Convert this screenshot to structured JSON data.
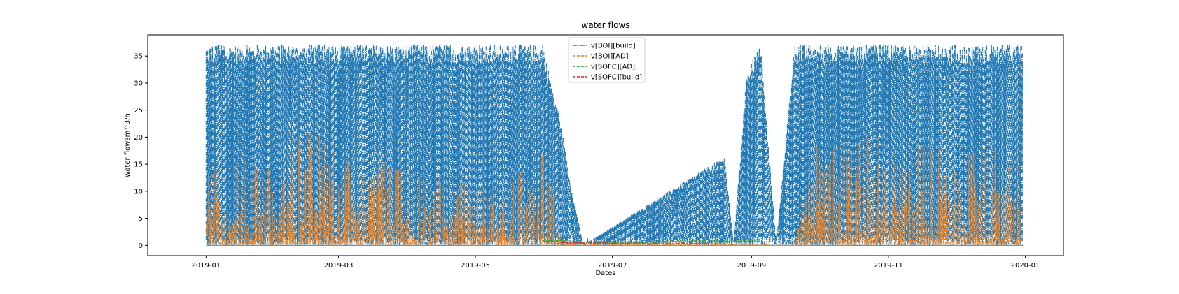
{
  "chart_data": {
    "type": "line",
    "title": "water flows",
    "xlabel": "Dates",
    "ylabel": "water flowsm^3/h",
    "x_range": [
      "2018-12-06",
      "2020-01-18"
    ],
    "ylim": [
      -1.9,
      38.9
    ],
    "x_ticks": [
      "2019-01",
      "2019-03",
      "2019-05",
      "2019-07",
      "2019-09",
      "2019-11",
      "2020-01"
    ],
    "y_ticks": [
      0,
      5,
      10,
      15,
      20,
      25,
      30,
      35
    ],
    "grid": false,
    "legend_position": "top-center",
    "series": [
      {
        "name": "v[BOI][build]",
        "color": "#1f77b4",
        "dash": "dashdot",
        "cap": 37.1,
        "x": [
          "2019-01-01",
          "2019-01-15",
          "2019-02-01",
          "2019-02-15",
          "2019-03-01",
          "2019-03-15",
          "2019-04-01",
          "2019-04-15",
          "2019-05-01",
          "2019-05-15",
          "2019-05-31",
          "2019-06-08",
          "2019-06-12",
          "2019-06-18",
          "2019-08-20",
          "2019-08-24",
          "2019-08-30",
          "2019-09-05",
          "2019-09-12",
          "2019-09-20",
          "2019-10-01",
          "2019-10-15",
          "2019-11-01",
          "2019-11-15",
          "2019-12-01",
          "2019-12-15",
          "2019-12-31"
        ],
        "values": [
          37.1,
          37.1,
          37.1,
          37.1,
          37.1,
          37.1,
          37.1,
          37.1,
          37.1,
          37.1,
          37.1,
          23.0,
          12.0,
          0,
          16.5,
          0,
          33.0,
          37.1,
          0,
          37.1,
          37.1,
          37.1,
          37.1,
          37.1,
          37.1,
          37.1,
          37.1
        ]
      },
      {
        "name": "v[BOI][AD]",
        "color": "#ff7f0e",
        "dash": "dashed",
        "x": [
          "2019-01-01",
          "2019-01-15",
          "2019-02-01",
          "2019-02-15",
          "2019-03-01",
          "2019-03-15",
          "2019-04-01",
          "2019-04-15",
          "2019-05-01",
          "2019-05-15",
          "2019-05-31",
          "2019-06-10",
          "2019-09-20",
          "2019-10-01",
          "2019-10-15",
          "2019-11-01",
          "2019-11-15",
          "2019-12-01",
          "2019-12-15",
          "2019-12-31"
        ],
        "values": [
          13.0,
          17.0,
          16.0,
          21.0,
          19.0,
          16.5,
          13.0,
          12.5,
          10.5,
          11.5,
          17.0,
          0.5,
          0,
          20.0,
          19.0,
          20.5,
          18.5,
          18.0,
          17.0,
          20.0
        ]
      },
      {
        "name": "v[SOFC][AD]",
        "color": "#2ca02c",
        "dash": "dashed",
        "x": [
          "2019-05-31",
          "2019-06-10",
          "2019-06-20",
          "2019-07-01",
          "2019-07-15",
          "2019-08-01",
          "2019-08-15",
          "2019-08-25",
          "2019-09-05"
        ],
        "values": [
          1.0,
          1.0,
          0.7,
          0.7,
          0.7,
          1.0,
          1.0,
          1.0,
          1.0
        ]
      },
      {
        "name": "v[SOFC][build]",
        "color": "#d62728",
        "dash": "dashed",
        "x": [
          "2019-06-05",
          "2019-06-20",
          "2019-07-01",
          "2019-07-15",
          "2019-08-01",
          "2019-08-20"
        ],
        "values": [
          0.6,
          0.6,
          0.5,
          0.5,
          0.5,
          0.4
        ]
      }
    ]
  }
}
